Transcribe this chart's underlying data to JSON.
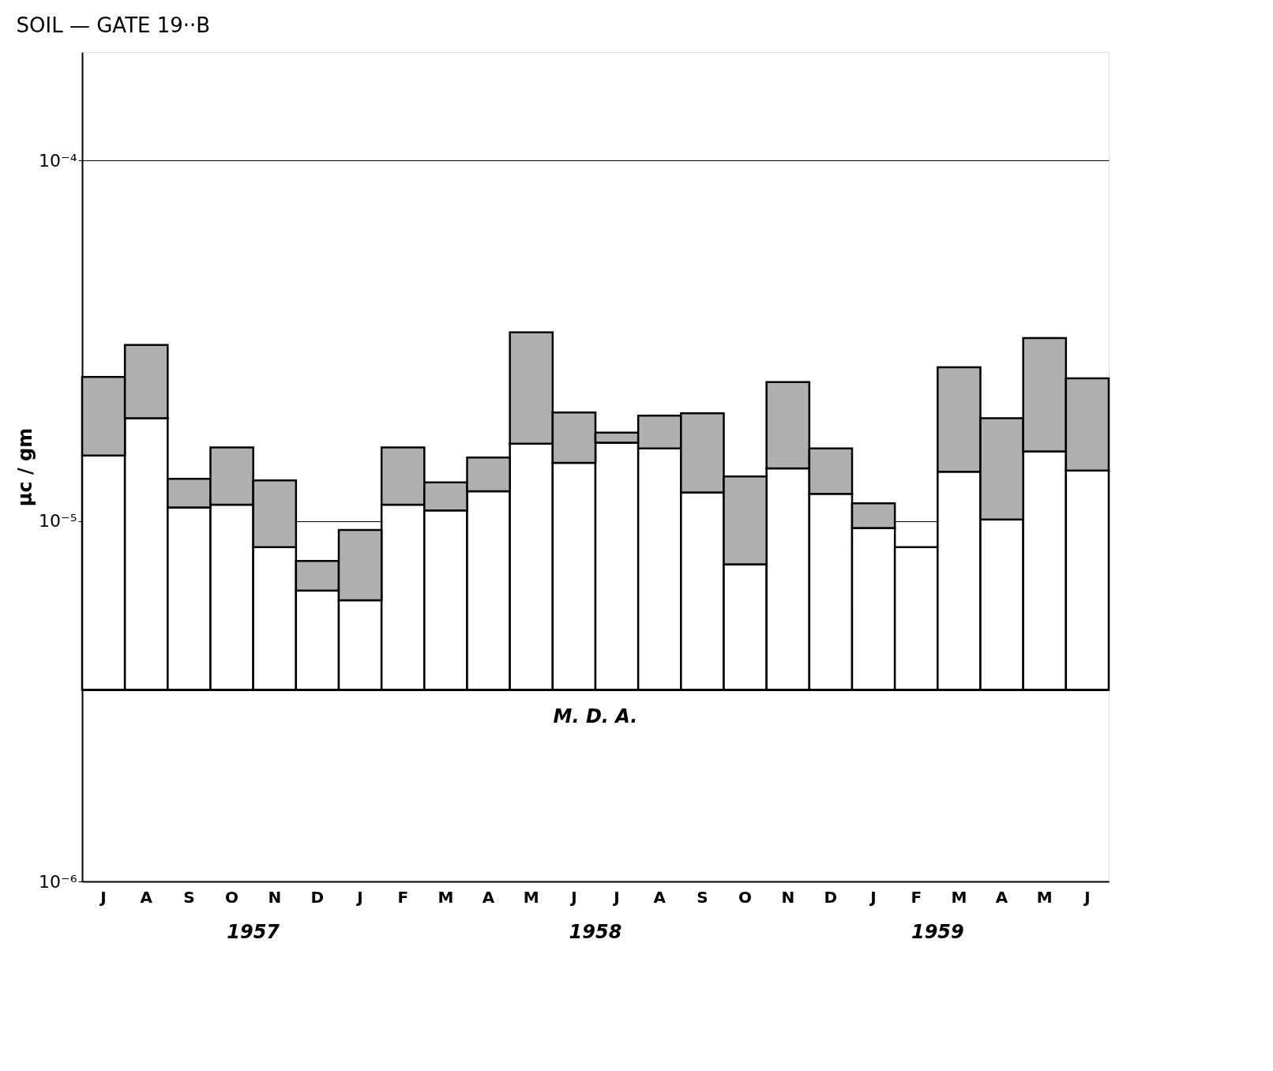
{
  "chart_data": {
    "type": "bar",
    "title": "SOIL — GATE 19··B",
    "ylabel": "μc / gm",
    "categories": [
      "J",
      "A",
      "S",
      "O",
      "N",
      "D",
      "J",
      "F",
      "M",
      "A",
      "M",
      "J",
      "J",
      "A",
      "S",
      "O",
      "N",
      "D",
      "J",
      "F",
      "M",
      "A",
      "M",
      "J"
    ],
    "log": true,
    "series": [
      {
        "color": "#ffffff",
        "base": [
          3.4e-06,
          3.4e-06,
          3.4e-06,
          3.4e-06,
          3.4e-06,
          3.4e-06,
          3.4e-06,
          3.4e-06,
          3.4e-06,
          3.4e-06,
          3.4e-06,
          3.4e-06,
          3.4e-06,
          3.4e-06,
          3.4e-06,
          3.4e-06,
          3.4e-06,
          3.4e-06,
          3.4e-06,
          3.4e-06,
          3.4e-06,
          3.4e-06,
          3.4e-06,
          3.4e-06
        ],
        "values": [
          1.18e-05,
          1.59e-05,
          7.5e-06,
          7.7e-06,
          5.06e-06,
          3.01e-06,
          2.63e-06,
          7.7e-06,
          7.3e-06,
          8.7e-06,
          1.3e-05,
          1.11e-05,
          1.31e-05,
          1.25e-05,
          8.6e-06,
          4.18e-06,
          1.06e-05,
          8.5e-06,
          6.17e-06,
          5.06e-06,
          1.03e-05,
          6.7e-06,
          1.22e-05,
          1.04e-05
        ]
      },
      {
        "color": "#b0b0b0",
        "base": [
          1.52e-05,
          1.93e-05,
          1.09e-05,
          1.11e-05,
          8.46e-06,
          6.41e-06,
          6.03e-06,
          1.11e-05,
          1.07e-05,
          1.21e-05,
          1.64e-05,
          1.45e-05,
          1.65e-05,
          1.59e-05,
          1.2e-05,
          7.58e-06,
          1.4e-05,
          1.19e-05,
          9.57e-06,
          null,
          1.37e-05,
          1.01e-05,
          1.56e-05,
          1.38e-05
        ],
        "values": [
          9.9e-06,
          1.15e-05,
          2.2e-06,
          4.9e-06,
          4.5e-06,
          1.34e-06,
          3.42e-06,
          4.9e-06,
          2.1e-06,
          2.9e-06,
          1.7e-05,
          5.5e-06,
          1.1e-06,
          3.7e-06,
          7.9e-06,
          5.72e-06,
          1.03e-05,
          4e-06,
          1.63e-06,
          null,
          1.3e-05,
          9.2e-06,
          1.66e-05,
          1.11e-05
        ]
      }
    ],
    "ylim": [
      1e-06,
      0.0002
    ],
    "yticks": [
      {
        "value": 1e-06,
        "label": "10⁻⁶"
      },
      {
        "value": 1e-05,
        "label": "10⁻⁵"
      },
      {
        "value": 0.0001,
        "label": "10⁻⁴"
      }
    ],
    "ref_lines": [
      {
        "axis": "y",
        "value": 3.4e-06,
        "label": "M. D. A.",
        "color": "#000000"
      }
    ],
    "annotations": [
      "1957",
      "1958",
      "1959"
    ],
    "grid": "y"
  }
}
